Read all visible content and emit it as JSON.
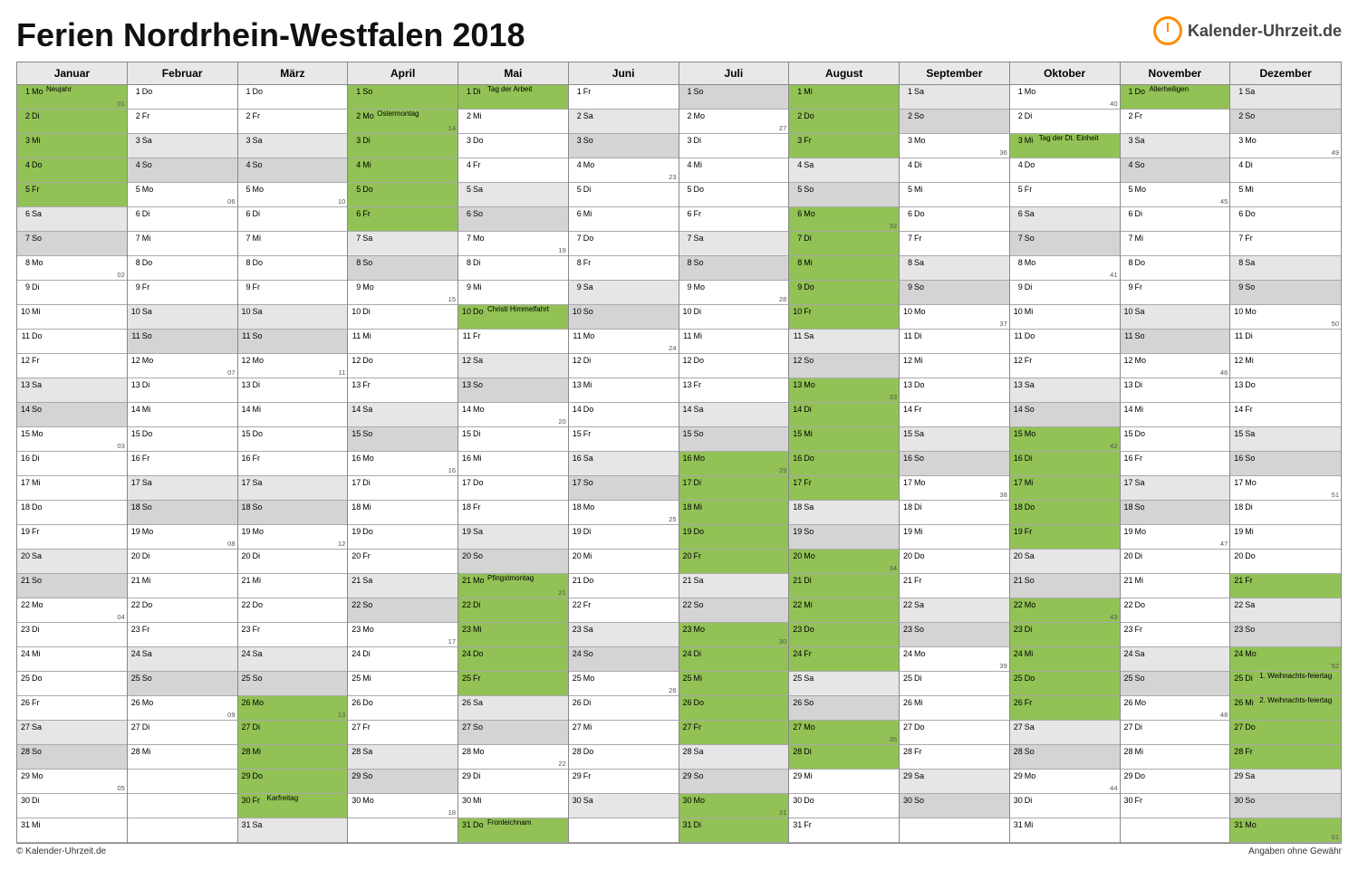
{
  "title": "Ferien Nordrhein-Westfalen 2018",
  "logoText": "Kalender-Uhrzeit.de",
  "footerLeft": "© Kalender-Uhrzeit.de",
  "footerRight": "Angaben ohne Gewähr",
  "colors": {
    "white": "#ffffff",
    "weekend": "#e6e6e6",
    "sunday": "#d4d4d4",
    "holidayWeek": "#ededed",
    "green": "#92c255",
    "greenDark": "#7db043"
  },
  "weekdays": [
    "Mo",
    "Di",
    "Mi",
    "Do",
    "Fr",
    "Sa",
    "So"
  ],
  "months": [
    {
      "name": "Januar",
      "start": 0,
      "len": 31,
      "vac": [
        1,
        2,
        3,
        4,
        5
      ],
      "hol": {
        "1": "Neujahr"
      },
      "wk": {
        "1": "01",
        "8": "02",
        "15": "03",
        "22": "04",
        "29": "05"
      }
    },
    {
      "name": "Februar",
      "start": 3,
      "len": 28,
      "vac": [],
      "hol": {},
      "wk": {
        "5": "06",
        "12": "07",
        "19": "08",
        "26": "09"
      }
    },
    {
      "name": "März",
      "start": 3,
      "len": 31,
      "vac": [
        26,
        27,
        28,
        29,
        30
      ],
      "hol": {
        "30": "Karfreitag"
      },
      "wk": {
        "5": "10",
        "12": "11",
        "19": "12",
        "26": "13"
      }
    },
    {
      "name": "April",
      "start": 6,
      "len": 30,
      "vac": [
        3,
        4,
        5,
        6
      ],
      "hol": {
        "1": "",
        "2": "Ostermontag"
      },
      "wk": {
        "2": "14",
        "9": "15",
        "16": "16",
        "23": "17",
        "30": "18"
      }
    },
    {
      "name": "Mai",
      "start": 1,
      "len": 31,
      "vac": [
        22,
        23,
        24,
        25
      ],
      "hol": {
        "1": "Tag der Arbeit",
        "10": "Christi Himmelfahrt",
        "21": "Pfingstmontag",
        "31": "Fronleichnam"
      },
      "wk": {
        "7": "19",
        "14": "20",
        "21": "21",
        "28": "22"
      }
    },
    {
      "name": "Juni",
      "start": 4,
      "len": 30,
      "vac": [],
      "hol": {},
      "wk": {
        "4": "23",
        "11": "24",
        "18": "25",
        "25": "26"
      }
    },
    {
      "name": "Juli",
      "start": 6,
      "len": 31,
      "vac": [
        16,
        17,
        18,
        19,
        20,
        23,
        24,
        25,
        26,
        27,
        30,
        31
      ],
      "hol": {},
      "wk": {
        "2": "27",
        "9": "28",
        "16": "29",
        "23": "30",
        "30": "31"
      }
    },
    {
      "name": "August",
      "start": 2,
      "len": 31,
      "vac": [
        1,
        2,
        3,
        6,
        7,
        8,
        9,
        10,
        13,
        14,
        15,
        16,
        17,
        20,
        21,
        22,
        23,
        24,
        27,
        28
      ],
      "hol": {},
      "wk": {
        "6": "32",
        "13": "33",
        "20": "34",
        "27": "35"
      }
    },
    {
      "name": "September",
      "start": 5,
      "len": 30,
      "vac": [],
      "hol": {},
      "wk": {
        "3": "36",
        "10": "37",
        "17": "38",
        "24": "39"
      }
    },
    {
      "name": "Oktober",
      "start": 0,
      "len": 31,
      "vac": [
        15,
        16,
        17,
        18,
        19,
        22,
        23,
        24,
        25,
        26
      ],
      "hol": {
        "3": "Tag der Dt. Einheit"
      },
      "wk": {
        "1": "40",
        "8": "41",
        "15": "42",
        "22": "43",
        "29": "44"
      }
    },
    {
      "name": "November",
      "start": 3,
      "len": 30,
      "vac": [],
      "hol": {
        "1": "Allerheiligen"
      },
      "wk": {
        "5": "45",
        "12": "46",
        "19": "47",
        "26": "48"
      }
    },
    {
      "name": "Dezember",
      "start": 5,
      "len": 31,
      "vac": [
        21,
        24,
        27,
        28,
        31
      ],
      "hol": {
        "25": "1. Weihnachts-feiertag",
        "26": "2. Weihnachts-feiertag"
      },
      "wk": {
        "3": "49",
        "10": "50",
        "17": "51",
        "24": "52",
        "31": "01"
      }
    }
  ]
}
